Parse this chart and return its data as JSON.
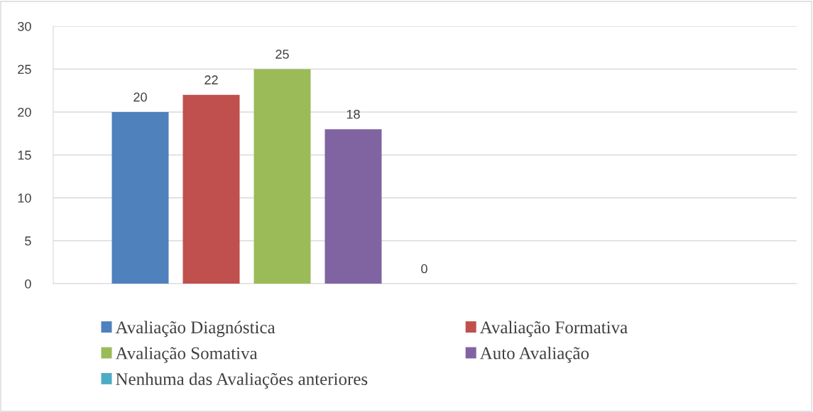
{
  "chart_data": {
    "type": "bar",
    "categories": [
      null
    ],
    "series": [
      {
        "name": "Avaliação Diagnóstica",
        "color": "#4f81bd",
        "values": [
          20
        ]
      },
      {
        "name": "Avaliação Formativa",
        "color": "#c0504d",
        "values": [
          22
        ]
      },
      {
        "name": "Avaliação Somativa",
        "color": "#9bbb59",
        "values": [
          25
        ]
      },
      {
        "name": "Auto Avaliação",
        "color": "#8064a2",
        "values": [
          18
        ]
      },
      {
        "name": "Nenhuma das Avaliações anteriores",
        "color": "#4bacc6",
        "values": [
          0
        ]
      }
    ],
    "ylim": [
      0,
      30
    ],
    "yticks": [
      0,
      5,
      10,
      15,
      20,
      25,
      30
    ],
    "grid": "y",
    "legend": "bottom",
    "data_labels": true
  }
}
